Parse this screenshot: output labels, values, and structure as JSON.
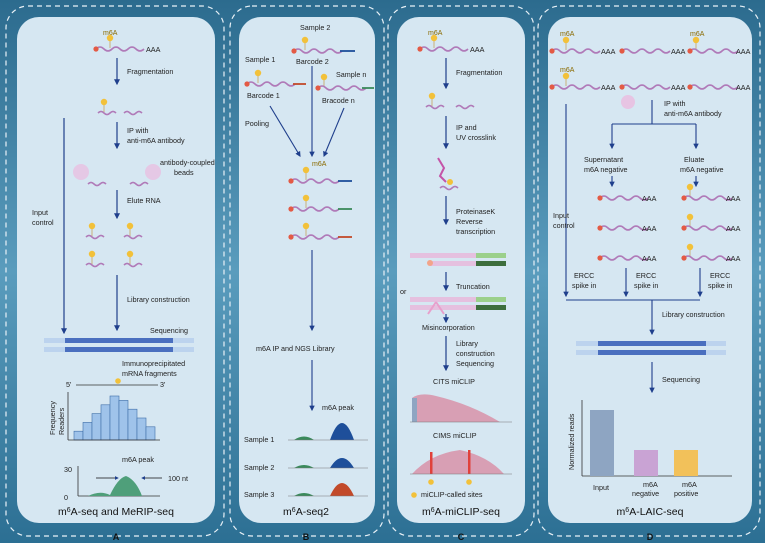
{
  "colors": {
    "bg_top": "#2c6b8e",
    "panel": "#d6e7f2",
    "wave": "#b07ab8",
    "cap": "#e35a45",
    "m6a": "#f2c13a",
    "arrow": "#1f3f8c",
    "seq_dark": "#4a6fbf",
    "seq_light": "#bcd3ee",
    "hist": "#9fc3ea",
    "peak_blue": "#1e4f9a",
    "peak_red": "#c24a2a",
    "peak_green": "#3a8a5b",
    "bar_input": "#8ea5c2",
    "bar_neg": "#c9a3d4",
    "bar_pos": "#f2c15a"
  },
  "panels": [
    {
      "letter": "A",
      "title_m": "m",
      "title_sup": "6",
      "title_rest": "A-seq and MeRIP-seq"
    },
    {
      "letter": "B",
      "title_m": "m",
      "title_sup": "6",
      "title_rest": "A-seq2"
    },
    {
      "letter": "C",
      "title_m": "m",
      "title_sup": "6",
      "title_rest": "A-miCLIP-seq"
    },
    {
      "letter": "D",
      "title_m": "m",
      "title_sup": "6",
      "title_rest": "A-LAIC-seq"
    }
  ],
  "m6a_label": "m6A",
  "polyA": "AAA",
  "panelA": {
    "fragmentation": "Fragmentation",
    "ip1": "IP with",
    "ip2": "anti-m6A antibody",
    "beads1": "antibody-coupled",
    "beads2": "beads",
    "elute": "Elute RNA",
    "input1": "Input",
    "input2": "control",
    "library": "Library construction",
    "sequencing": "Sequencing",
    "immuno1": "Immunoprecipitated",
    "immuno2": "mRNA fragments",
    "five": "5'",
    "three": "3'",
    "freq1": "Frequency",
    "freq2": "Readers",
    "peak": "m6A peak",
    "nt": "100 nt",
    "y30": "30",
    "y0": "0"
  },
  "panelB": {
    "sample2": "Sample 2",
    "barcode2": "Barcode 2",
    "sample1": "Sample 1",
    "barcode1": "Barcode 1",
    "samplen": "Sample n",
    "barcoden": "Bracode n",
    "pooling": "Pooling",
    "ip_lib": "m6A IP and NGS Library",
    "peak": "m6A peak",
    "s1": "Sample 1",
    "s2": "Sample 2",
    "s3": "Sample 3"
  },
  "panelC": {
    "fragmentation": "Fragmentation",
    "ip1": "IP and",
    "ip2": "UV crosslink",
    "pk1": "ProteinaseK",
    "pk2": "Reverse",
    "pk3": "transcription",
    "truncation": "Truncation",
    "or": "or",
    "misinc": "Misincorporation",
    "lib1": "Library",
    "lib2": "construction",
    "lib3": "Sequencing",
    "cits": "CITS miCLIP",
    "cims": "CIMS miCLIP",
    "called": "miCLIP-called sites"
  },
  "panelD": {
    "ip1": "IP with",
    "ip2": "anti-m6A antibody",
    "sup1": "Supernatant",
    "sup2": "m6A negative",
    "elu1": "Eluate",
    "elu2": "m6A negative",
    "input1": "Input",
    "input2": "control",
    "ercc1": "ERCC",
    "ercc2": "spike in",
    "library": "Library construction",
    "sequencing": "Sequencing",
    "ylabel": "Normalized reads",
    "cat_input": "Input",
    "cat_neg1": "m6A",
    "cat_neg2": "negative",
    "cat_pos1": "m6A",
    "cat_pos2": "positive"
  },
  "chart_data": [
    {
      "type": "bar",
      "title": "Immunoprecipitated mRNA fragments",
      "xlabel": "",
      "ylabel": "Frequency Readers",
      "values": [
        2,
        4,
        6,
        8,
        10,
        9,
        7,
        5,
        3
      ]
    },
    {
      "type": "bar",
      "title": "",
      "ylabel": "Normalized reads",
      "categories": [
        "Input",
        "m6A negative",
        "m6A positive"
      ],
      "values": [
        3.3,
        1.3,
        1.3
      ]
    }
  ]
}
